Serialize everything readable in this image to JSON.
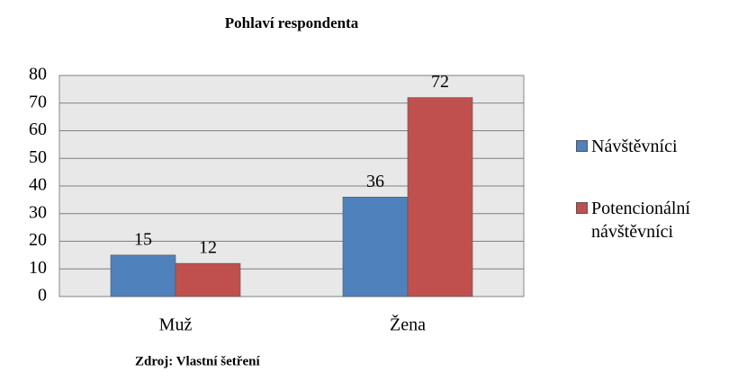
{
  "chart_data": {
    "type": "bar",
    "title": "Pohlaví respondenta",
    "categories": [
      "Muž",
      "Žena"
    ],
    "series": [
      {
        "name": "Návštěvníci",
        "color": "#4f81bd",
        "values": [
          15,
          36
        ]
      },
      {
        "name": "Potencionální návštěvníci",
        "color": "#c0504d",
        "values": [
          12,
          72
        ]
      }
    ],
    "ylim": [
      0,
      80
    ],
    "yticks": [
      0,
      10,
      20,
      30,
      40,
      50,
      60,
      70,
      80
    ],
    "grid": true,
    "legend": "right",
    "note": "Zdroj: Vlastní šetření"
  }
}
